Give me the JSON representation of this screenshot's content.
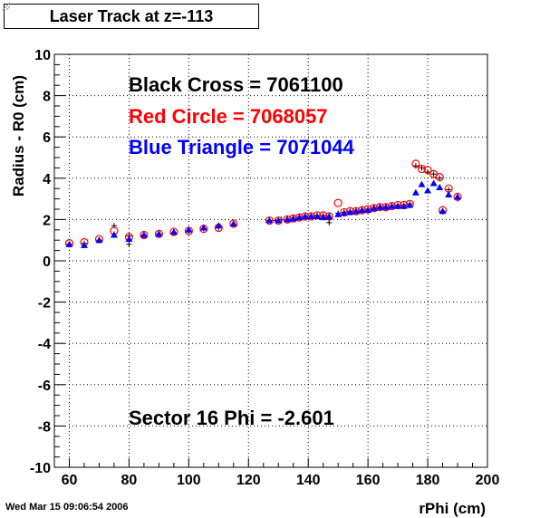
{
  "footer": {
    "timestamp": "Wed Mar 15 09:06:54 2006"
  },
  "chart_data": {
    "type": "scatter",
    "title": "Laser Track at z=-113",
    "xlabel": "rPhi (cm)",
    "ylabel": "Radius - R0 (cm)",
    "xlim": [
      55,
      200
    ],
    "ylim": [
      -10,
      10
    ],
    "x_ticks": [
      60,
      80,
      100,
      120,
      140,
      160,
      180,
      200
    ],
    "y_ticks": [
      -10,
      -8,
      -6,
      -4,
      -2,
      0,
      2,
      4,
      6,
      8,
      10
    ],
    "grid": true,
    "annotations": {
      "black": "Black Cross  = 7061100",
      "red": "Red Circle = 7068057",
      "blue": "Blue Triangle = 7071044",
      "sector": "Sector 16 Phi = -2.601"
    },
    "colors": {
      "black": "#000000",
      "red": "#ff0000",
      "blue": "#0000ff"
    },
    "series": [
      {
        "marker": "cross",
        "color": "#000000",
        "points": [
          [
            60,
            0.8
          ],
          [
            65,
            0.85
          ],
          [
            70,
            1.0
          ],
          [
            75,
            1.7
          ],
          [
            75,
            1.3
          ],
          [
            80,
            1.2
          ],
          [
            80,
            0.8
          ],
          [
            85,
            1.25
          ],
          [
            90,
            1.3
          ],
          [
            95,
            1.35
          ],
          [
            100,
            1.45
          ],
          [
            105,
            1.55
          ],
          [
            110,
            1.6
          ],
          [
            115,
            1.75
          ],
          [
            127,
            1.95
          ],
          [
            129,
            1.95
          ],
          [
            131,
            2.0
          ],
          [
            133,
            2.0
          ],
          [
            135,
            2.05
          ],
          [
            137,
            2.1
          ],
          [
            139,
            2.1
          ],
          [
            141,
            2.15
          ],
          [
            143,
            2.2
          ],
          [
            145,
            2.2
          ],
          [
            147,
            2.0
          ],
          [
            147,
            1.85
          ],
          [
            150,
            2.3
          ],
          [
            152,
            2.35
          ],
          [
            154,
            2.4
          ],
          [
            156,
            2.4
          ],
          [
            158,
            2.45
          ],
          [
            160,
            2.5
          ],
          [
            162,
            2.55
          ],
          [
            164,
            2.6
          ],
          [
            166,
            2.6
          ],
          [
            168,
            2.65
          ],
          [
            170,
            2.7
          ],
          [
            172,
            2.7
          ],
          [
            174,
            2.75
          ],
          [
            176,
            4.6
          ],
          [
            178,
            4.5
          ],
          [
            180,
            4.3
          ],
          [
            182,
            4.2
          ],
          [
            184,
            4.0
          ],
          [
            185,
            2.4
          ],
          [
            187,
            3.45
          ],
          [
            190,
            3.0
          ]
        ]
      },
      {
        "marker": "circle",
        "color": "#ff0000",
        "points": [
          [
            60,
            0.85
          ],
          [
            65,
            0.9
          ],
          [
            70,
            1.05
          ],
          [
            75,
            1.45
          ],
          [
            80,
            1.15
          ],
          [
            85,
            1.25
          ],
          [
            90,
            1.3
          ],
          [
            95,
            1.4
          ],
          [
            100,
            1.45
          ],
          [
            105,
            1.55
          ],
          [
            110,
            1.6
          ],
          [
            115,
            1.8
          ],
          [
            127,
            1.95
          ],
          [
            130,
            1.95
          ],
          [
            133,
            2.0
          ],
          [
            135,
            2.05
          ],
          [
            137,
            2.1
          ],
          [
            139,
            2.15
          ],
          [
            141,
            2.15
          ],
          [
            143,
            2.2
          ],
          [
            145,
            2.2
          ],
          [
            147,
            2.15
          ],
          [
            150,
            2.8
          ],
          [
            152,
            2.35
          ],
          [
            154,
            2.4
          ],
          [
            156,
            2.4
          ],
          [
            158,
            2.45
          ],
          [
            160,
            2.5
          ],
          [
            162,
            2.55
          ],
          [
            164,
            2.6
          ],
          [
            166,
            2.6
          ],
          [
            168,
            2.65
          ],
          [
            170,
            2.7
          ],
          [
            172,
            2.7
          ],
          [
            174,
            2.75
          ],
          [
            176,
            4.7
          ],
          [
            178,
            4.45
          ],
          [
            180,
            4.4
          ],
          [
            182,
            4.2
          ],
          [
            184,
            4.05
          ],
          [
            185,
            2.45
          ],
          [
            187,
            3.5
          ],
          [
            190,
            3.1
          ]
        ]
      },
      {
        "marker": "triangle",
        "color": "#0000ff",
        "points": [
          [
            60,
            0.8
          ],
          [
            65,
            0.75
          ],
          [
            70,
            1.0
          ],
          [
            75,
            1.25
          ],
          [
            80,
            1.05
          ],
          [
            85,
            1.25
          ],
          [
            90,
            1.3
          ],
          [
            95,
            1.4
          ],
          [
            100,
            1.5
          ],
          [
            105,
            1.6
          ],
          [
            110,
            1.7
          ],
          [
            115,
            1.8
          ],
          [
            127,
            1.95
          ],
          [
            130,
            1.95
          ],
          [
            133,
            2.0
          ],
          [
            135,
            2.05
          ],
          [
            137,
            2.1
          ],
          [
            139,
            2.15
          ],
          [
            141,
            2.15
          ],
          [
            143,
            2.15
          ],
          [
            145,
            2.1
          ],
          [
            147,
            2.15
          ],
          [
            150,
            2.25
          ],
          [
            152,
            2.3
          ],
          [
            154,
            2.35
          ],
          [
            156,
            2.4
          ],
          [
            158,
            2.45
          ],
          [
            160,
            2.45
          ],
          [
            162,
            2.55
          ],
          [
            164,
            2.6
          ],
          [
            166,
            2.6
          ],
          [
            168,
            2.65
          ],
          [
            170,
            2.65
          ],
          [
            172,
            2.65
          ],
          [
            174,
            2.7
          ],
          [
            176,
            3.3
          ],
          [
            178,
            3.7
          ],
          [
            180,
            3.4
          ],
          [
            182,
            3.75
          ],
          [
            184,
            3.55
          ],
          [
            185,
            2.4
          ],
          [
            187,
            3.2
          ],
          [
            190,
            3.1
          ]
        ]
      }
    ]
  }
}
